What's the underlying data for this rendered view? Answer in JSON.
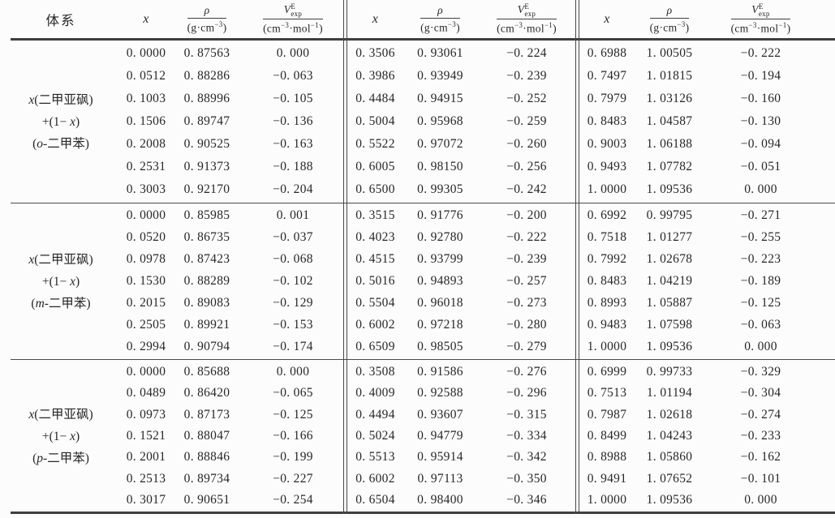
{
  "table": {
    "headers": {
      "system": "体系",
      "x": "x",
      "rho": {
        "num": "ρ",
        "den": [
          "(g·cm",
          "−3",
          ")"
        ]
      },
      "v": {
        "base": "V",
        "sup": "E",
        "sub": "exp",
        "den": [
          "(cm",
          "−3",
          "·mol",
          "−1",
          ")"
        ]
      }
    },
    "blocks": [
      {
        "system_lines": [
          [
            [
              "i",
              "x"
            ],
            [
              "t",
              "(二甲亚砜)"
            ]
          ],
          [
            [
              "t",
              "+(1− "
            ],
            [
              "i",
              "x"
            ],
            [
              "t",
              ")"
            ]
          ],
          [
            [
              "t",
              "("
            ],
            [
              "i",
              "o"
            ],
            [
              "t",
              "-二甲苯)"
            ]
          ]
        ],
        "rows": [
          [
            "0. 0000",
            "0. 87563",
            "0. 000",
            "0. 3506",
            "0. 93061",
            "−0. 224",
            "0. 6988",
            "1. 00505",
            "−0. 222"
          ],
          [
            "0. 0512",
            "0. 88286",
            "−0. 063",
            "0. 3986",
            "0. 93949",
            "−0. 239",
            "0. 7497",
            "1. 01815",
            "−0. 194"
          ],
          [
            "0. 1003",
            "0. 88996",
            "−0. 105",
            "0. 4484",
            "0. 94915",
            "−0. 252",
            "0. 7979",
            "1. 03126",
            "−0. 160"
          ],
          [
            "0. 1506",
            "0. 89747",
            "−0. 136",
            "0. 5004",
            "0. 95968",
            "−0. 259",
            "0. 8483",
            "1. 04587",
            "−0. 130"
          ],
          [
            "0. 2008",
            "0. 90525",
            "−0. 163",
            "0. 5522",
            "0. 97072",
            "−0. 260",
            "0. 9003",
            "1. 06188",
            "−0. 094"
          ],
          [
            "0. 2531",
            "0. 91373",
            "−0. 188",
            "0. 6005",
            "0. 98150",
            "−0. 256",
            "0. 9493",
            "1. 07782",
            "−0. 051"
          ],
          [
            "0. 3003",
            "0. 92170",
            "−0. 204",
            "0. 6500",
            "0. 99305",
            "−0. 242",
            "1. 0000",
            "1. 09536",
            "0. 000"
          ]
        ]
      },
      {
        "system_lines": [
          [
            [
              "i",
              "x"
            ],
            [
              "t",
              "(二甲亚砜)"
            ]
          ],
          [
            [
              "t",
              "+(1− "
            ],
            [
              "i",
              "x"
            ],
            [
              "t",
              ")"
            ]
          ],
          [
            [
              "t",
              "("
            ],
            [
              "i",
              "m"
            ],
            [
              "t",
              "-二甲苯)"
            ]
          ]
        ],
        "rows": [
          [
            "0. 0000",
            "0. 85985",
            "0. 001",
            "0. 3515",
            "0. 91776",
            "−0. 200",
            "0. 6992",
            "0. 99795",
            "−0. 271"
          ],
          [
            "0. 0520",
            "0. 86735",
            "−0. 037",
            "0. 4023",
            "0. 92780",
            "−0. 222",
            "0. 7518",
            "1. 01277",
            "−0. 255"
          ],
          [
            "0. 0978",
            "0. 87423",
            "−0. 068",
            "0. 4515",
            "0. 93799",
            "−0. 239",
            "0. 7992",
            "1. 02678",
            "−0. 223"
          ],
          [
            "0. 1530",
            "0. 88289",
            "−0. 102",
            "0. 5016",
            "0. 94893",
            "−0. 257",
            "0. 8483",
            "1. 04219",
            "−0. 189"
          ],
          [
            "0. 2015",
            "0. 89083",
            "−0. 129",
            "0. 5504",
            "0. 96018",
            "−0. 273",
            "0. 8993",
            "1. 05887",
            "−0. 125"
          ],
          [
            "0. 2505",
            "0. 89921",
            "−0. 153",
            "0. 6002",
            "0. 97218",
            "−0. 280",
            "0. 9483",
            "1. 07598",
            "−0. 063"
          ],
          [
            "0. 2994",
            "0. 90794",
            "−0. 174",
            "0. 6509",
            "0. 98505",
            "−0. 279",
            "1. 0000",
            "1. 09536",
            "0. 000"
          ]
        ]
      },
      {
        "system_lines": [
          [
            [
              "i",
              "x"
            ],
            [
              "t",
              "(二甲亚砜)"
            ]
          ],
          [
            [
              "t",
              "+(1− "
            ],
            [
              "i",
              "x"
            ],
            [
              "t",
              ")"
            ]
          ],
          [
            [
              "t",
              "("
            ],
            [
              "i",
              "p"
            ],
            [
              "t",
              "-二甲苯)"
            ]
          ]
        ],
        "rows": [
          [
            "0. 0000",
            "0. 85688",
            "0. 000",
            "0. 3508",
            "0. 91586",
            "−0. 276",
            "0. 6999",
            "0. 99733",
            "−0. 329"
          ],
          [
            "0. 0489",
            "0. 86420",
            "−0. 065",
            "0. 4009",
            "0. 92588",
            "−0. 296",
            "0. 7513",
            "1. 01194",
            "−0. 304"
          ],
          [
            "0. 0973",
            "0. 87173",
            "−0. 125",
            "0. 4494",
            "0. 93607",
            "−0. 315",
            "0. 7987",
            "1. 02618",
            "−0. 274"
          ],
          [
            "0. 1521",
            "0. 88047",
            "−0. 166",
            "0. 5024",
            "0. 94779",
            "−0. 334",
            "0. 8499",
            "1. 04243",
            "−0. 233"
          ],
          [
            "0. 2001",
            "0. 88846",
            "−0. 199",
            "0. 5513",
            "0. 95914",
            "−0. 342",
            "0. 8988",
            "1. 05860",
            "−0. 162"
          ],
          [
            "0. 2513",
            "0. 89734",
            "−0. 227",
            "0. 6002",
            "0. 97113",
            "−0. 350",
            "0. 9491",
            "1. 07652",
            "−0. 101"
          ],
          [
            "0. 3017",
            "0. 90651",
            "−0. 254",
            "0. 6504",
            "0. 98400",
            "−0. 346",
            "1. 0000",
            "1. 09536",
            "0. 000"
          ]
        ]
      }
    ]
  }
}
